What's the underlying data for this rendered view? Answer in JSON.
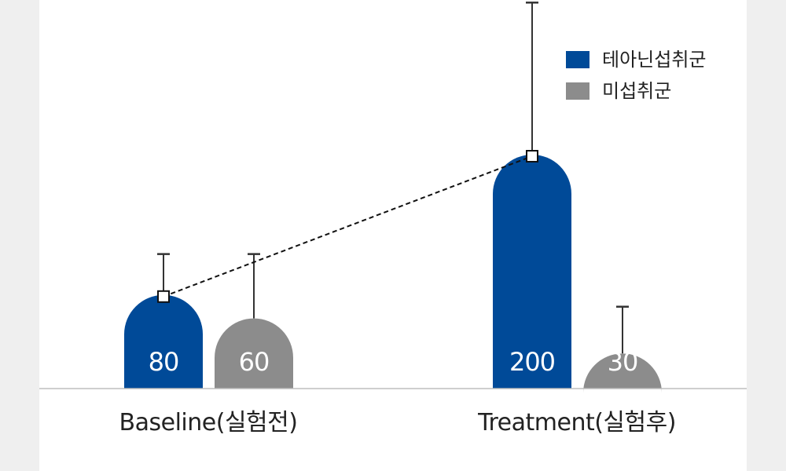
{
  "chart_data": {
    "type": "bar",
    "categories": [
      "Baseline(실험전)",
      "Treatment(실험후)"
    ],
    "series": [
      {
        "name": "테아닌섭취군",
        "color": "#004a98",
        "values": [
          80,
          200
        ],
        "error_upper": [
          115,
          330
        ]
      },
      {
        "name": "미섭취군",
        "color": "#8c8c8c",
        "values": [
          60,
          30
        ],
        "error_upper": [
          115,
          70
        ]
      }
    ],
    "data_labels": [
      "80",
      "60",
      "200",
      "30"
    ],
    "trend_line": {
      "series": "테아닌섭취군",
      "style": "dashed"
    },
    "ylim": [
      0,
      330
    ],
    "grid": false,
    "legend_position": "top-right"
  }
}
